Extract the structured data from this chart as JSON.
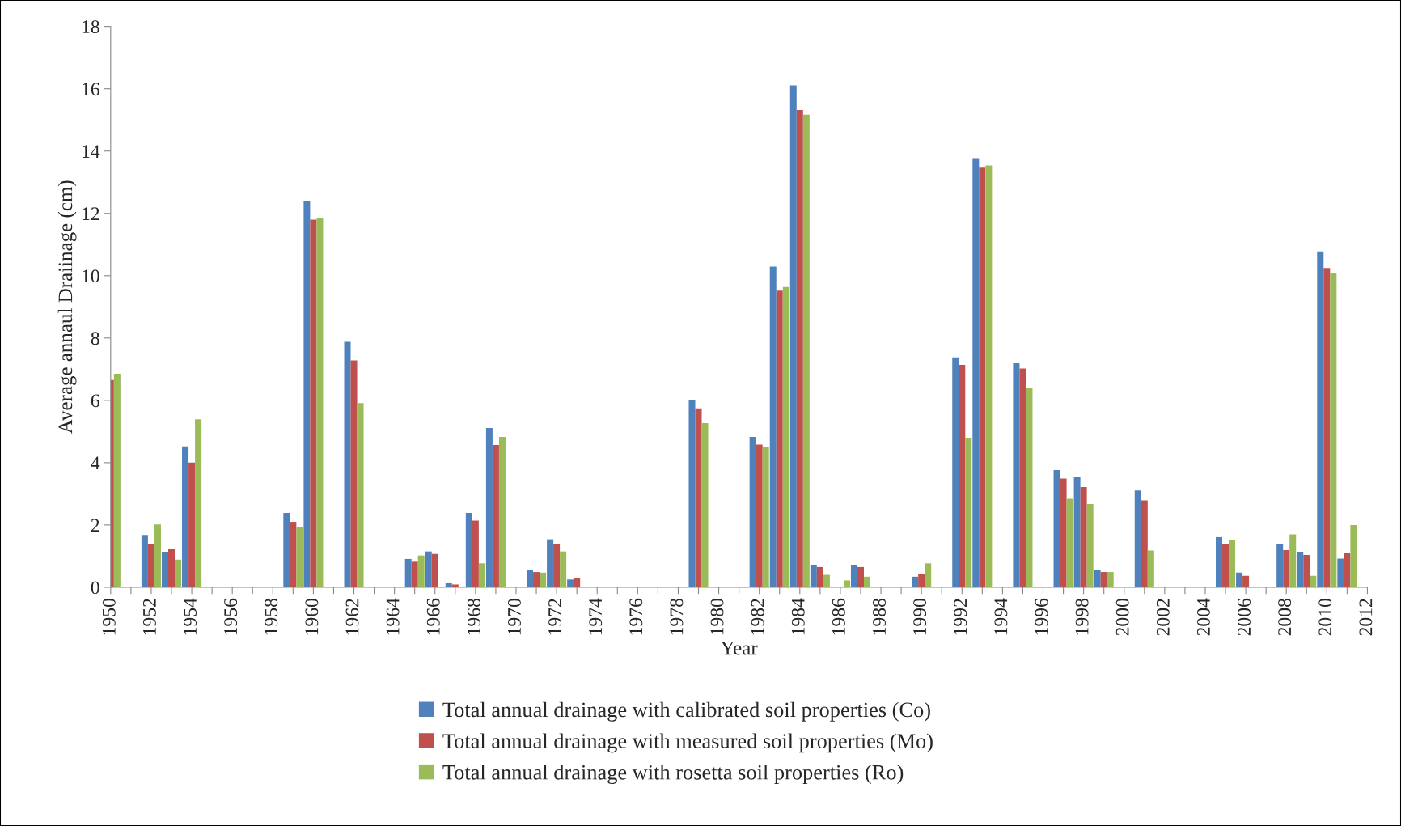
{
  "chart_data": {
    "type": "bar",
    "xlabel": "Year",
    "ylabel": "Average annaul Draiinage (cm)",
    "x": [
      1950,
      1951,
      1952,
      1953,
      1954,
      1955,
      1956,
      1957,
      1958,
      1959,
      1960,
      1961,
      1962,
      1963,
      1964,
      1965,
      1966,
      1967,
      1968,
      1969,
      1970,
      1971,
      1972,
      1973,
      1974,
      1975,
      1976,
      1977,
      1978,
      1979,
      1980,
      1981,
      1982,
      1983,
      1984,
      1985,
      1986,
      1987,
      1988,
      1989,
      1990,
      1991,
      1992,
      1993,
      1994,
      1995,
      1996,
      1997,
      1998,
      1999,
      2000,
      2001,
      2002,
      2003,
      2004,
      2005,
      2006,
      2007,
      2008,
      2009,
      2010,
      2011
    ],
    "series": [
      {
        "name": "Total annual drainage with calibrated soil properties (Co)",
        "color": "#4f81bd",
        "values": [
          null,
          0,
          1.68,
          1.14,
          4.52,
          0,
          0,
          0,
          0,
          2.39,
          12.4,
          0,
          7.88,
          0,
          0,
          0.91,
          1.15,
          0.13,
          2.39,
          5.11,
          0,
          0.56,
          1.54,
          0.25,
          0,
          0,
          0,
          0,
          0,
          6.0,
          0,
          0,
          4.83,
          10.29,
          16.11,
          0.71,
          0,
          0.71,
          0,
          0,
          0.34,
          0,
          7.38,
          13.77,
          0,
          7.19,
          0,
          3.76,
          3.54,
          0.55,
          0,
          3.11,
          0,
          0,
          0,
          1.61,
          0.47,
          0,
          1.38,
          1.14,
          10.78,
          0.92
        ]
      },
      {
        "name": "Total annual drainage with measured soil properties (Mo)",
        "color": "#c0504d",
        "values": [
          6.65,
          0,
          1.38,
          1.24,
          4.0,
          0,
          0,
          0,
          0,
          2.1,
          11.8,
          0,
          7.28,
          0,
          0,
          0.82,
          1.07,
          0.09,
          2.14,
          4.57,
          0,
          0.49,
          1.38,
          0.31,
          0,
          0,
          0,
          0,
          0,
          5.74,
          0,
          0,
          4.58,
          9.52,
          15.32,
          0.65,
          0,
          0.65,
          0,
          0,
          0.43,
          0,
          7.14,
          13.47,
          0,
          7.02,
          0,
          3.49,
          3.22,
          0.49,
          0,
          2.79,
          0,
          0,
          0,
          1.4,
          0.37,
          0,
          1.19,
          1.04,
          10.25,
          1.09
        ]
      },
      {
        "name": "Total annual drainage with rosetta soil properties (Ro)",
        "color": "#9bbb59",
        "values": [
          6.85,
          0,
          2.02,
          0.89,
          5.39,
          0,
          0,
          0,
          0,
          1.94,
          11.86,
          0,
          5.91,
          0,
          0,
          1.02,
          0,
          0,
          0.77,
          4.83,
          0,
          0.47,
          1.15,
          0,
          0,
          0,
          0,
          0,
          0,
          5.27,
          0,
          0,
          4.5,
          9.64,
          15.17,
          0.4,
          0.22,
          0.34,
          0,
          0,
          0.77,
          0,
          4.79,
          13.54,
          0,
          6.41,
          0,
          2.84,
          2.67,
          0.49,
          0,
          1.18,
          0,
          0,
          0,
          1.53,
          0,
          0,
          1.7,
          0.37,
          10.09,
          2.0
        ]
      }
    ],
    "xlim": [
      1950,
      2012
    ],
    "xticks": [
      1950,
      {
        "value": 1951,
        "label": null
      },
      1952,
      {
        "value": 1953,
        "label": null
      },
      1954,
      {
        "value": 1955,
        "label": null
      },
      1956,
      {
        "value": 1957,
        "label": null
      },
      1958,
      {
        "value": 1959,
        "label": null
      },
      1960,
      {
        "value": 1961,
        "label": null
      },
      1962,
      {
        "value": 1963,
        "label": null
      },
      1964,
      {
        "value": 1965,
        "label": null
      },
      1966,
      {
        "value": 1967,
        "label": null
      },
      1968,
      {
        "value": 1969,
        "label": null
      },
      1970,
      {
        "value": 1971,
        "label": null
      },
      1972,
      {
        "value": 1973,
        "label": null
      },
      1974,
      {
        "value": 1975,
        "label": null
      },
      1976,
      {
        "value": 1977,
        "label": null
      },
      1978,
      {
        "value": 1979,
        "label": null
      },
      1980,
      {
        "value": 1981,
        "label": null
      },
      1982,
      {
        "value": 1983,
        "label": null
      },
      1984,
      {
        "value": 1985,
        "label": null
      },
      1986,
      {
        "value": 1987,
        "label": null
      },
      1988,
      {
        "value": 1989,
        "label": null
      },
      1990,
      {
        "value": 1991,
        "label": null
      },
      1992,
      {
        "value": 1993,
        "label": null
      },
      1994,
      {
        "value": 1995,
        "label": null
      },
      1996,
      {
        "value": 1997,
        "label": null
      },
      1998,
      {
        "value": 1999,
        "label": null
      },
      2000,
      {
        "value": 2001,
        "label": null
      },
      2002,
      {
        "value": 2003,
        "label": null
      },
      2004,
      {
        "value": 2005,
        "label": null
      },
      2006,
      {
        "value": 2007,
        "label": null
      },
      2008,
      {
        "value": 2009,
        "label": null
      },
      2010,
      {
        "value": 2011,
        "label": null
      },
      2012
    ],
    "ylim": [
      0,
      18
    ],
    "yticks": [
      0,
      2,
      4,
      6,
      8,
      10,
      12,
      14,
      16,
      18
    ],
    "grid": false,
    "legend": "bottom"
  }
}
